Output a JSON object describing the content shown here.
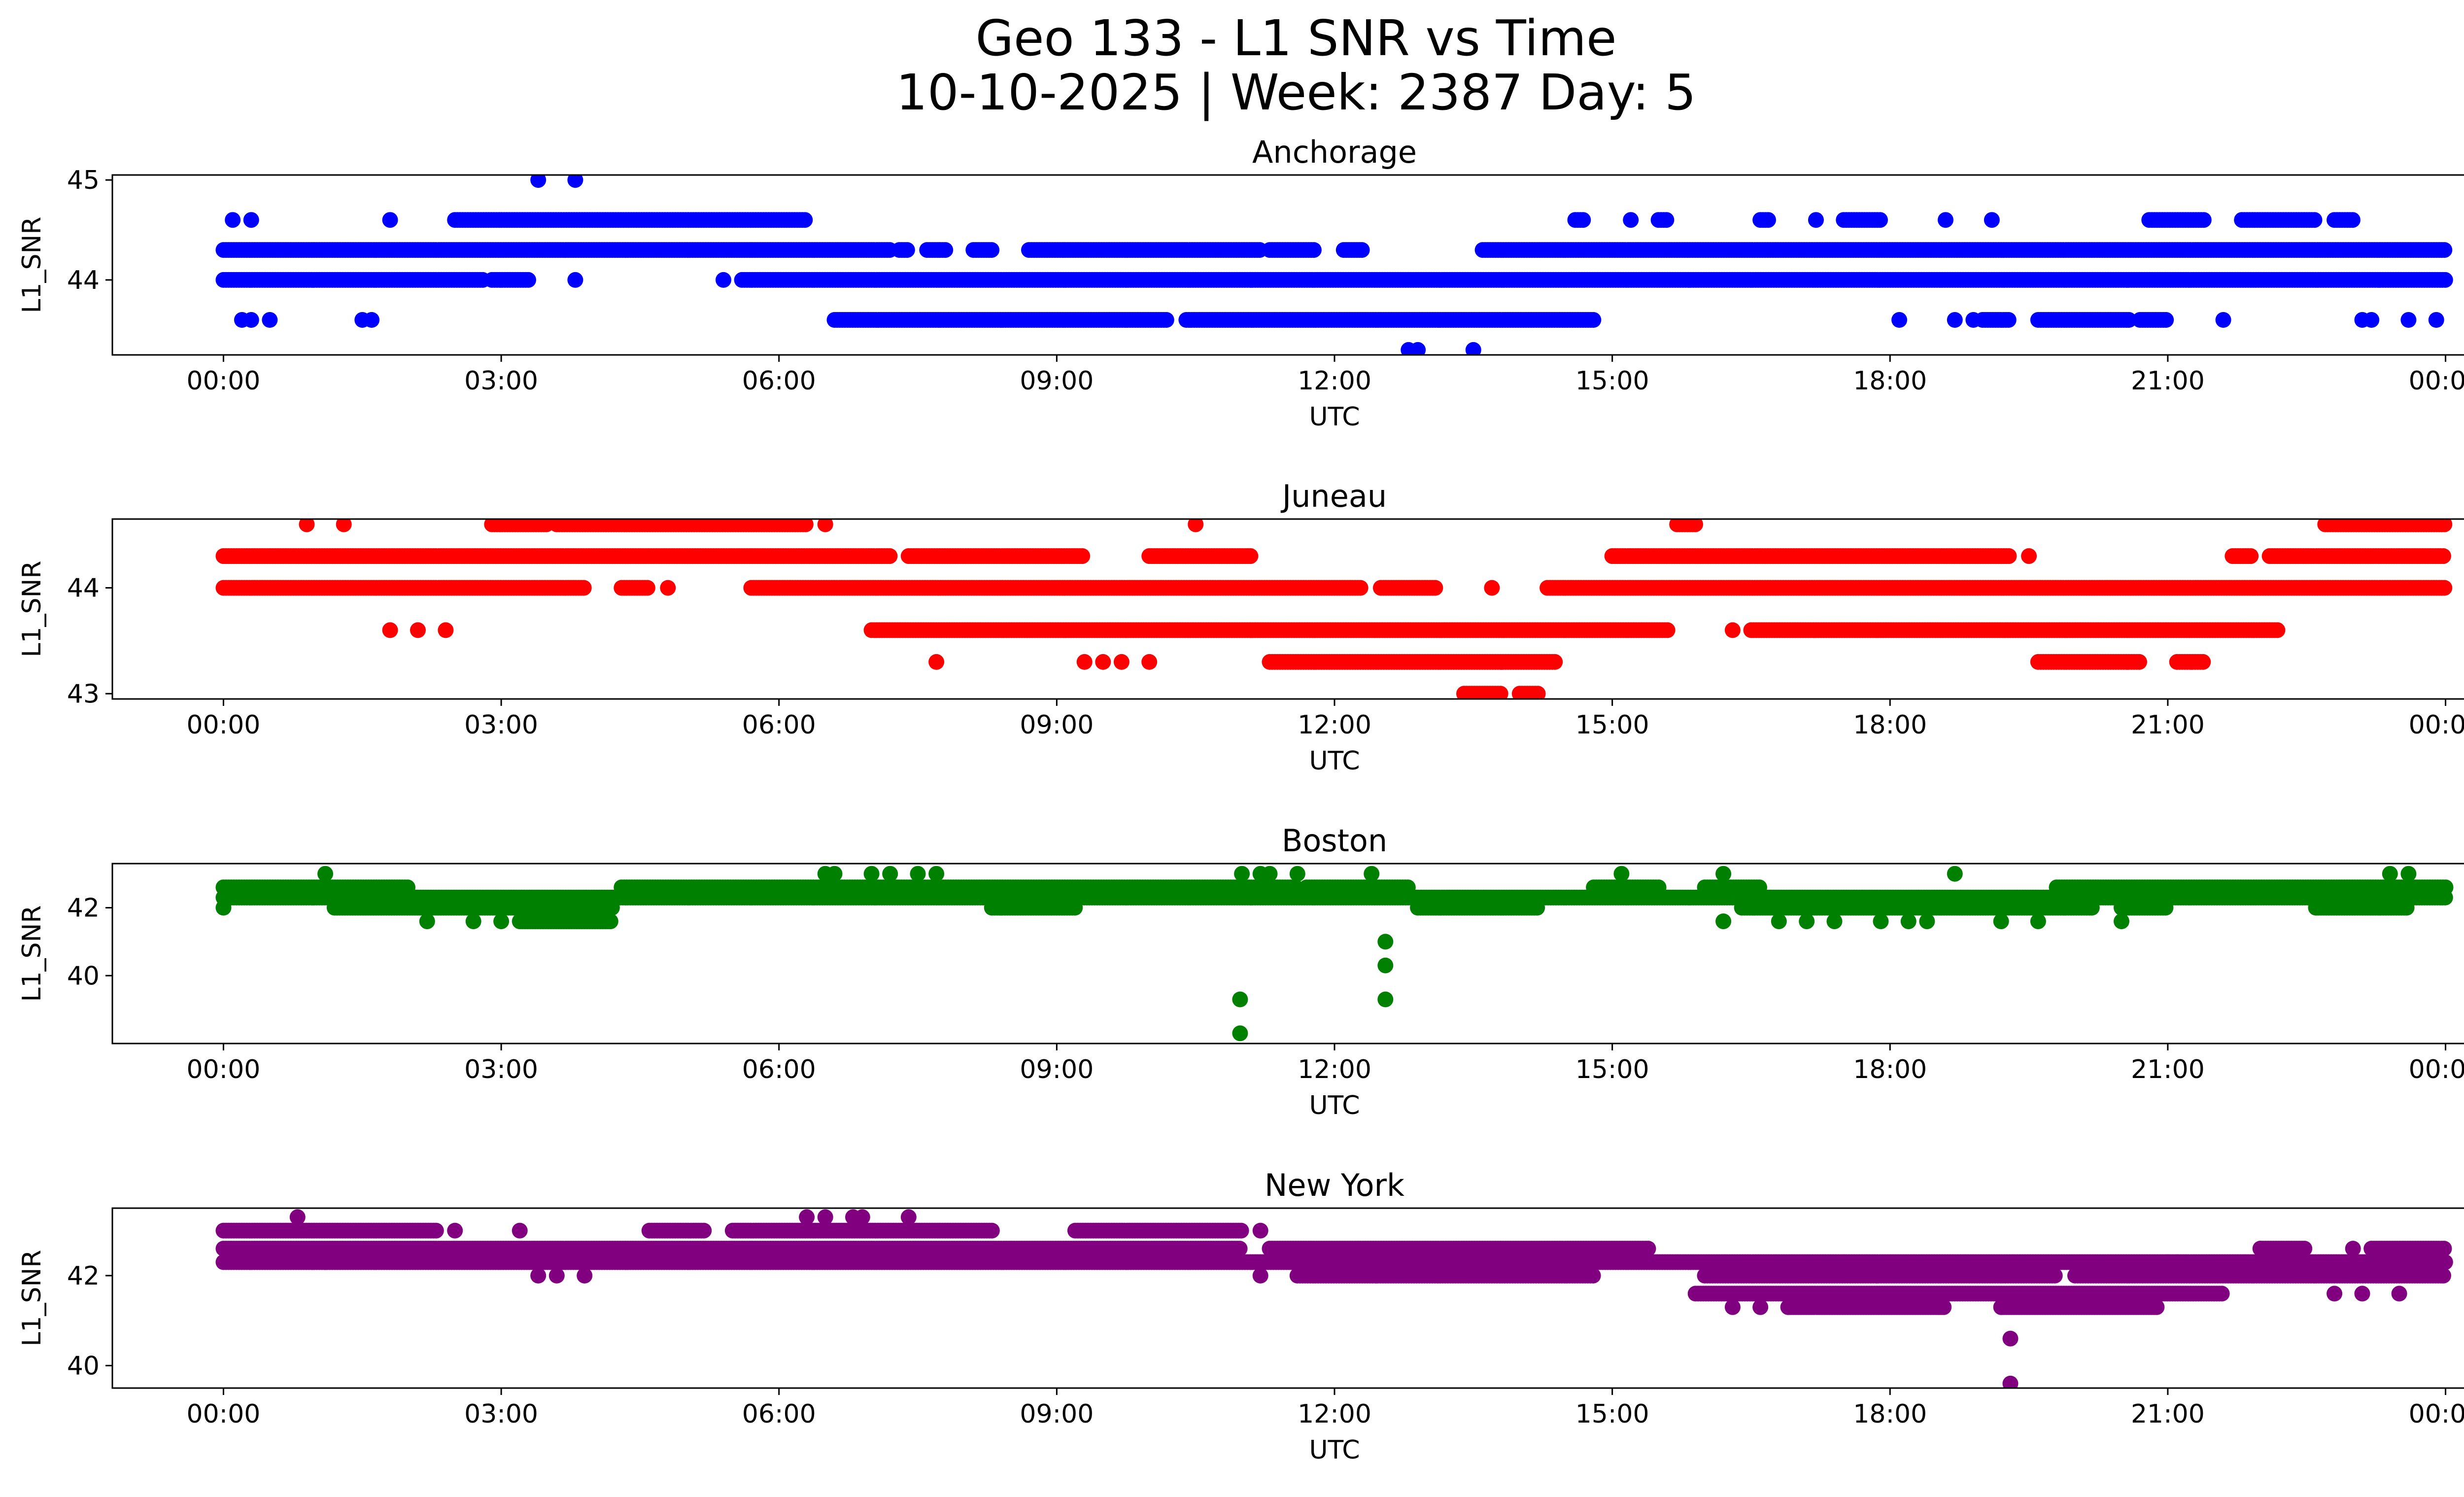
{
  "figure": {
    "title_line1": "Geo 133 - L1 SNR vs Time",
    "title_line2": "10-10-2025 | Week: 2387 Day: 5"
  },
  "chart_data": [
    {
      "type": "scatter",
      "title": "Anchorage",
      "xlabel": "UTC",
      "ylabel": "L1_SNR",
      "color": "#0000ff",
      "x_range_hours": [
        -1.2,
        25.2
      ],
      "ylim": [
        43.25,
        45.05
      ],
      "yticks": [
        44,
        45
      ],
      "xticks": [
        {
          "h": 0,
          "label": "00:00"
        },
        {
          "h": 3,
          "label": "03:00"
        },
        {
          "h": 6,
          "label": "06:00"
        },
        {
          "h": 9,
          "label": "09:00"
        },
        {
          "h": 12,
          "label": "12:00"
        },
        {
          "h": 15,
          "label": "15:00"
        },
        {
          "h": 18,
          "label": "18:00"
        },
        {
          "h": 21,
          "label": "21:00"
        },
        {
          "h": 24,
          "label": "00:00"
        }
      ],
      "bands": [
        {
          "y": 44.3,
          "x": [
            [
              0,
              7.2
            ],
            [
              7.3,
              7.4
            ],
            [
              7.6,
              7.8
            ],
            [
              8.1,
              8.3
            ],
            [
              8.7,
              11.2
            ],
            [
              11.3,
              11.8
            ],
            [
              12.1,
              12.3
            ],
            [
              13.6,
              24
            ]
          ]
        },
        {
          "y": 44.0,
          "x": [
            [
              0,
              2.8
            ],
            [
              2.9,
              3.3
            ],
            [
              5.6,
              24
            ]
          ]
        },
        {
          "y": 44.6,
          "x": [
            [
              2.5,
              6.3
            ],
            [
              14.6,
              14.7
            ],
            [
              15.5,
              15.6
            ],
            [
              16.6,
              16.7
            ],
            [
              17.5,
              17.9
            ],
            [
              20.8,
              21.4
            ],
            [
              21.8,
              22.6
            ],
            [
              22.8,
              23.0
            ]
          ]
        },
        {
          "y": 43.6,
          "x": [
            [
              6.6,
              10.2
            ],
            [
              10.4,
              14.8
            ],
            [
              19.0,
              19.3
            ],
            [
              19.6,
              20.6
            ],
            [
              20.7,
              21.0
            ]
          ]
        }
      ],
      "points": [
        [
          0.1,
          44.6
        ],
        [
          0.3,
          44.6
        ],
        [
          1.8,
          44.6
        ],
        [
          5.4,
          44.0
        ],
        [
          3.8,
          44.0
        ],
        [
          0.2,
          43.6
        ],
        [
          0.3,
          43.6
        ],
        [
          0.5,
          43.6
        ],
        [
          1.5,
          43.6
        ],
        [
          1.6,
          43.6
        ],
        [
          3.4,
          45.0
        ],
        [
          3.8,
          45.0
        ],
        [
          12.8,
          43.3
        ],
        [
          12.9,
          43.3
        ],
        [
          13.5,
          43.3
        ],
        [
          15.2,
          44.6
        ],
        [
          18.6,
          44.6
        ],
        [
          19.1,
          44.6
        ],
        [
          18.1,
          43.6
        ],
        [
          18.7,
          43.6
        ],
        [
          18.9,
          43.6
        ],
        [
          21.6,
          43.6
        ],
        [
          23.1,
          43.6
        ],
        [
          23.2,
          43.6
        ],
        [
          23.6,
          43.6
        ],
        [
          23.9,
          43.6
        ],
        [
          17.2,
          44.6
        ]
      ]
    },
    {
      "type": "scatter",
      "title": "Juneau",
      "xlabel": "UTC",
      "ylabel": "L1_SNR",
      "color": "#ff0000",
      "x_range_hours": [
        -1.2,
        25.2
      ],
      "ylim": [
        42.95,
        44.65
      ],
      "yticks": [
        43,
        44
      ],
      "xticks": [
        {
          "h": 0,
          "label": "00:00"
        },
        {
          "h": 3,
          "label": "03:00"
        },
        {
          "h": 6,
          "label": "06:00"
        },
        {
          "h": 9,
          "label": "09:00"
        },
        {
          "h": 12,
          "label": "12:00"
        },
        {
          "h": 15,
          "label": "15:00"
        },
        {
          "h": 18,
          "label": "18:00"
        },
        {
          "h": 21,
          "label": "21:00"
        },
        {
          "h": 24,
          "label": "00:00"
        }
      ],
      "bands": [
        {
          "y": 44.3,
          "x": [
            [
              0,
              7.2
            ],
            [
              7.4,
              9.3
            ],
            [
              10.0,
              11.1
            ],
            [
              15.0,
              19.3
            ],
            [
              21.7,
              21.9
            ],
            [
              22.1,
              24
            ]
          ]
        },
        {
          "y": 44.0,
          "x": [
            [
              0,
              3.9
            ],
            [
              4.3,
              4.6
            ],
            [
              5.7,
              12.3
            ],
            [
              12.5,
              13.1
            ],
            [
              14.3,
              24
            ]
          ]
        },
        {
          "y": 44.6,
          "x": [
            [
              2.9,
              3.5
            ],
            [
              3.6,
              6.3
            ],
            [
              15.7,
              15.9
            ],
            [
              22.7,
              24
            ]
          ]
        },
        {
          "y": 43.6,
          "x": [
            [
              7.0,
              15.6
            ],
            [
              16.5,
              22.2
            ]
          ]
        },
        {
          "y": 43.3,
          "x": [
            [
              11.3,
              14.4
            ],
            [
              19.6,
              20.7
            ],
            [
              21.1,
              21.4
            ]
          ]
        },
        {
          "y": 43.0,
          "x": [
            [
              13.4,
              13.8
            ],
            [
              14.0,
              14.2
            ]
          ]
        }
      ],
      "points": [
        [
          0.9,
          44.6
        ],
        [
          1.3,
          44.6
        ],
        [
          6.5,
          44.6
        ],
        [
          10.5,
          44.6
        ],
        [
          4.8,
          44.0
        ],
        [
          13.7,
          44.0
        ],
        [
          19.5,
          44.3
        ],
        [
          1.8,
          43.6
        ],
        [
          2.1,
          43.6
        ],
        [
          2.4,
          43.6
        ],
        [
          7.7,
          43.3
        ],
        [
          9.3,
          43.3
        ],
        [
          9.5,
          43.3
        ],
        [
          9.7,
          43.3
        ],
        [
          10.0,
          43.3
        ],
        [
          16.3,
          43.6
        ]
      ]
    },
    {
      "type": "scatter",
      "title": "Boston",
      "xlabel": "UTC",
      "ylabel": "L1_SNR",
      "color": "#008000",
      "x_range_hours": [
        -1.2,
        25.2
      ],
      "ylim": [
        38.0,
        43.3
      ],
      "yticks": [
        40,
        42
      ],
      "xticks": [
        {
          "h": 0,
          "label": "00:00"
        },
        {
          "h": 3,
          "label": "03:00"
        },
        {
          "h": 6,
          "label": "06:00"
        },
        {
          "h": 9,
          "label": "09:00"
        },
        {
          "h": 12,
          "label": "12:00"
        },
        {
          "h": 15,
          "label": "15:00"
        },
        {
          "h": 18,
          "label": "18:00"
        },
        {
          "h": 21,
          "label": "21:00"
        },
        {
          "h": 24,
          "label": "00:00"
        }
      ],
      "bands": [
        {
          "y": 42.6,
          "x": [
            [
              0,
              2.0
            ],
            [
              4.3,
              11.6
            ],
            [
              11.7,
              12.8
            ],
            [
              14.8,
              15.5
            ],
            [
              16.0,
              16.6
            ],
            [
              19.8,
              24
            ]
          ]
        },
        {
          "y": 42.3,
          "x": [
            [
              0,
              24
            ]
          ]
        },
        {
          "y": 42.0,
          "x": [
            [
              1.2,
              4.2
            ],
            [
              8.3,
              9.2
            ],
            [
              12.9,
              14.2
            ],
            [
              16.4,
              20.2
            ],
            [
              20.5,
              21.0
            ],
            [
              22.6,
              23.6
            ]
          ]
        },
        {
          "y": 41.6,
          "x": [
            [
              3.2,
              4.2
            ]
          ]
        }
      ],
      "points": [
        [
          0,
          42.0
        ],
        [
          1.1,
          43.0
        ],
        [
          2.2,
          41.6
        ],
        [
          2.7,
          41.6
        ],
        [
          3.0,
          41.6
        ],
        [
          6.5,
          43.0
        ],
        [
          6.6,
          43.0
        ],
        [
          7.0,
          43.0
        ],
        [
          7.2,
          43.0
        ],
        [
          7.5,
          43.0
        ],
        [
          7.7,
          43.0
        ],
        [
          11.0,
          43.0
        ],
        [
          11.2,
          43.0
        ],
        [
          11.3,
          43.0
        ],
        [
          11.6,
          43.0
        ],
        [
          12.4,
          43.0
        ],
        [
          15.1,
          43.0
        ],
        [
          16.2,
          43.0
        ],
        [
          18.7,
          43.0
        ],
        [
          23.4,
          43.0
        ],
        [
          23.6,
          43.0
        ],
        [
          16.2,
          41.6
        ],
        [
          16.8,
          41.6
        ],
        [
          17.1,
          41.6
        ],
        [
          17.4,
          41.6
        ],
        [
          17.9,
          41.6
        ],
        [
          18.2,
          41.6
        ],
        [
          18.4,
          41.6
        ],
        [
          19.2,
          41.6
        ],
        [
          19.6,
          41.6
        ],
        [
          20.5,
          41.6
        ],
        [
          10.98,
          39.3
        ],
        [
          10.98,
          38.3
        ],
        [
          12.55,
          41.0
        ],
        [
          12.55,
          40.3
        ],
        [
          12.55,
          39.3
        ]
      ]
    },
    {
      "type": "scatter",
      "title": "New York",
      "xlabel": "UTC",
      "ylabel": "L1_SNR",
      "color": "#800080",
      "x_range_hours": [
        -1.2,
        25.2
      ],
      "ylim": [
        39.5,
        43.5
      ],
      "yticks": [
        40,
        42
      ],
      "xticks": [
        {
          "h": 0,
          "label": "00:00"
        },
        {
          "h": 3,
          "label": "03:00"
        },
        {
          "h": 6,
          "label": "06:00"
        },
        {
          "h": 9,
          "label": "09:00"
        },
        {
          "h": 12,
          "label": "12:00"
        },
        {
          "h": 15,
          "label": "15:00"
        },
        {
          "h": 18,
          "label": "18:00"
        },
        {
          "h": 21,
          "label": "21:00"
        },
        {
          "h": 24,
          "label": "00:00"
        }
      ],
      "bands": [
        {
          "y": 43.0,
          "x": [
            [
              0,
              2.3
            ],
            [
              4.6,
              5.2
            ],
            [
              5.5,
              8.3
            ],
            [
              9.2,
              11.0
            ]
          ]
        },
        {
          "y": 42.6,
          "x": [
            [
              0,
              11.0
            ],
            [
              11.3,
              15.4
            ],
            [
              22.0,
              22.5
            ],
            [
              23.2,
              24
            ]
          ]
        },
        {
          "y": 42.3,
          "x": [
            [
              0,
              24
            ]
          ]
        },
        {
          "y": 42.0,
          "x": [
            [
              11.6,
              14.8
            ],
            [
              16.0,
              19.8
            ],
            [
              20.0,
              24
            ]
          ]
        },
        {
          "y": 41.6,
          "x": [
            [
              15.9,
              21.6
            ]
          ]
        },
        {
          "y": 41.3,
          "x": [
            [
              16.9,
              18.6
            ],
            [
              19.2,
              20.9
            ]
          ]
        }
      ],
      "points": [
        [
          0.8,
          43.3
        ],
        [
          6.3,
          43.3
        ],
        [
          6.5,
          43.3
        ],
        [
          6.8,
          43.3
        ],
        [
          6.9,
          43.3
        ],
        [
          7.4,
          43.3
        ],
        [
          2.5,
          43.0
        ],
        [
          3.2,
          43.0
        ],
        [
          11.2,
          43.0
        ],
        [
          1.1,
          42.3
        ],
        [
          3.4,
          42.0
        ],
        [
          3.6,
          42.0
        ],
        [
          3.9,
          42.0
        ],
        [
          11.2,
          42.0
        ],
        [
          16.3,
          41.3
        ],
        [
          16.6,
          41.3
        ],
        [
          17.5,
          42.3
        ],
        [
          21.0,
          42.3
        ],
        [
          21.1,
          42.3
        ],
        [
          22.0,
          42.6
        ],
        [
          23.0,
          42.6
        ],
        [
          22.8,
          41.6
        ],
        [
          23.1,
          41.6
        ],
        [
          23.5,
          41.6
        ],
        [
          19.3,
          40.6
        ],
        [
          19.3,
          39.6
        ]
      ]
    }
  ]
}
